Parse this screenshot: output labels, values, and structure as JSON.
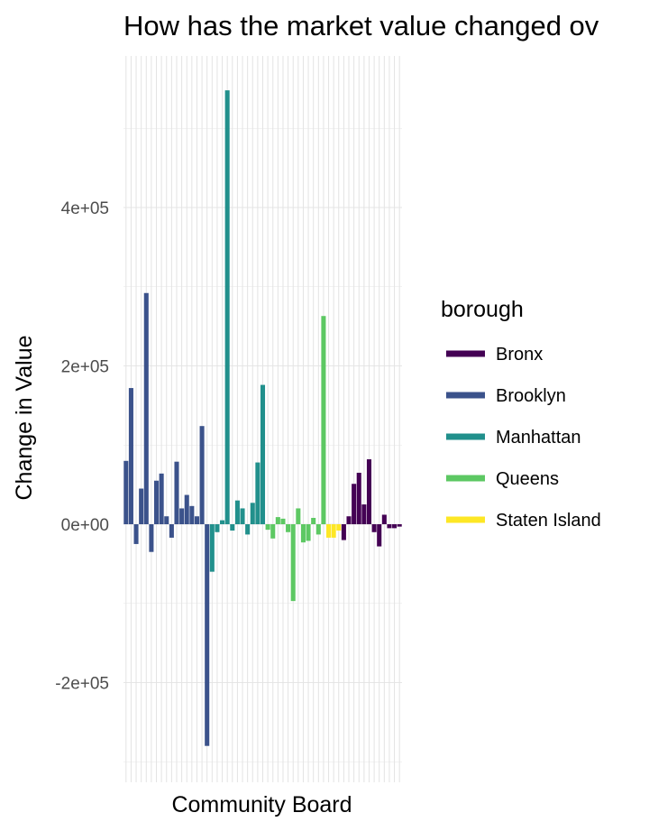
{
  "chart_data": {
    "type": "bar",
    "title": "How has the market value changed ov",
    "xlabel": "Community Board",
    "ylabel": "Change in Value",
    "ylim": [
      -315000,
      595000
    ],
    "y_ticks": [
      -200000,
      0,
      200000,
      400000
    ],
    "y_tick_labels": [
      "-2e+05",
      "0e+00",
      "2e+05",
      "4e+05"
    ],
    "grid": true,
    "legend": {
      "title": "borough",
      "placement": "right",
      "entries": [
        {
          "name": "Bronx",
          "color": "#440154"
        },
        {
          "name": "Brooklyn",
          "color": "#3b528b"
        },
        {
          "name": "Manhattan",
          "color": "#21908c"
        },
        {
          "name": "Queens",
          "color": "#5dc863"
        },
        {
          "name": "Staten Island",
          "color": "#fde725"
        }
      ]
    },
    "series": [
      {
        "name": "Brooklyn",
        "color": "#3b528b",
        "values": [
          80000,
          172000,
          -25000,
          45000,
          292000,
          -35000,
          55000,
          64000,
          10000,
          -17000,
          79000,
          20000,
          37000,
          23000,
          10000,
          124000,
          -280000
        ]
      },
      {
        "name": "Manhattan",
        "color": "#21908c",
        "values": [
          -60000,
          -10000,
          5000,
          548000,
          -8000,
          30000,
          20000,
          -13000,
          27000,
          78000,
          176000
        ]
      },
      {
        "name": "Queens",
        "color": "#5dc863",
        "values": [
          -7000,
          -18000,
          9000,
          7000,
          -10000,
          -97000,
          20000,
          -23000,
          -21000,
          8000,
          -13000,
          263000
        ]
      },
      {
        "name": "Staten Island",
        "color": "#fde725",
        "values": [
          -17000,
          -17000,
          -8000
        ]
      },
      {
        "name": "Bronx",
        "color": "#440154",
        "values": [
          -20000,
          10000,
          51000,
          65000,
          25000,
          82000,
          -10000,
          -28000,
          12000,
          -5000,
          -5000,
          -3000
        ]
      }
    ]
  }
}
